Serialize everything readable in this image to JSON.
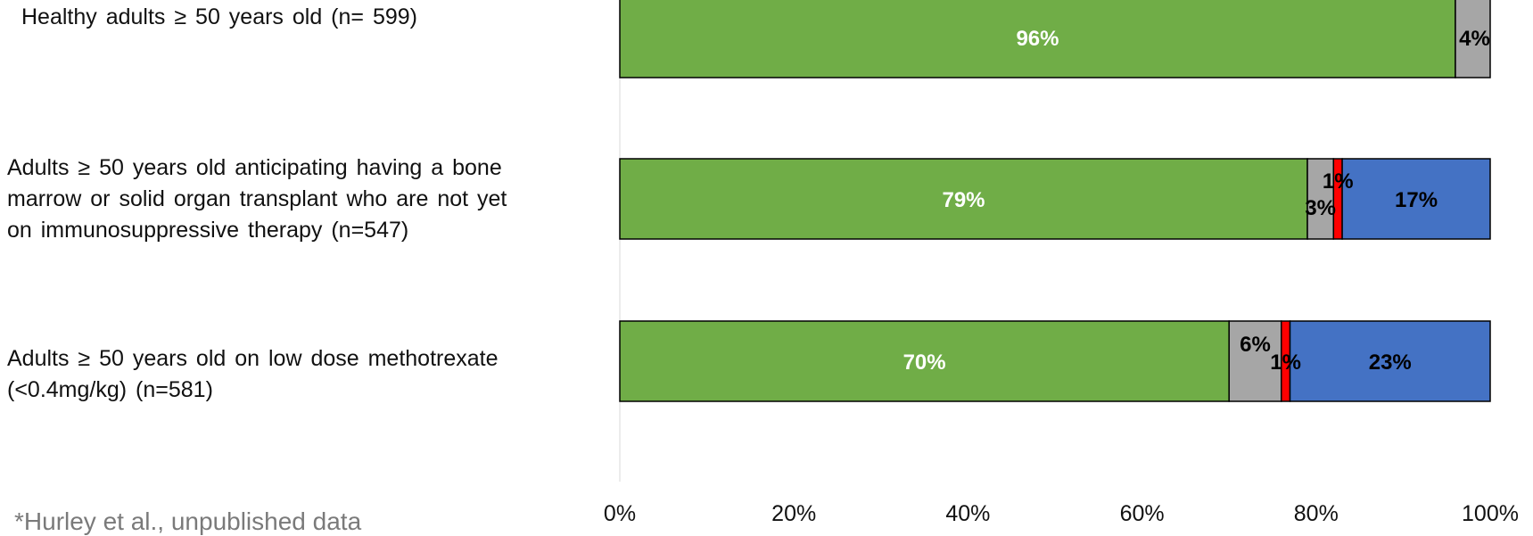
{
  "chart_data": {
    "type": "bar",
    "orientation": "horizontal",
    "stacked": true,
    "categories": [
      "Healthy adults ≥ 50 years old (n= 599)",
      "Adults ≥ 50 years old anticipating having a bone marrow or solid organ transplant who are not yet on immunosuppressive therapy (n=547)",
      "Adults ≥ 50 years old on low dose methotrexate (<0.4mg/kg) (n=581)"
    ],
    "series": [
      {
        "color": "#70ad47",
        "values": [
          96,
          79,
          70
        ],
        "labels": [
          "96%",
          "79%",
          "70%"
        ],
        "label_color": "#ffffff"
      },
      {
        "color": "#a6a6a6",
        "values": [
          4,
          3,
          6
        ],
        "labels": [
          "4%",
          "3%",
          "6%"
        ],
        "label_color": "#000000"
      },
      {
        "color": "#ff0000",
        "values": [
          0,
          1,
          1
        ],
        "labels": [
          "",
          "1%",
          "1%"
        ],
        "label_color": "#000000"
      },
      {
        "color": "#4472c4",
        "values": [
          0,
          17,
          23
        ],
        "labels": [
          "",
          "17%",
          "23%"
        ],
        "label_color": "#000000"
      }
    ],
    "xlim": [
      0,
      100
    ],
    "x_ticks": [
      "0%",
      "20%",
      "40%",
      "60%",
      "80%",
      "100%"
    ],
    "grid": false,
    "title": "",
    "xlabel": "",
    "ylabel": ""
  },
  "labels": {
    "cat1": "Healthy adults ≥ 50 years old (n= 599)",
    "cat2": "Adults ≥ 50 years old anticipating having a bone\nmarrow or solid organ transplant who are not yet\non immunosuppressive therapy (n=547)",
    "cat3": "  Adults ≥ 50 years old on low dose methotrexate\n  (<0.4mg/kg)  (n=581)"
  },
  "footnote": "*Hurley et al., unpublished data"
}
